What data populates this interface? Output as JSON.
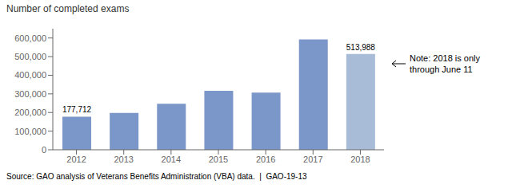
{
  "chart_data": {
    "type": "bar",
    "ylabel": "Number of completed exams",
    "categories": [
      "2012",
      "2013",
      "2014",
      "2015",
      "2016",
      "2017",
      "2018"
    ],
    "values": [
      177712,
      198000,
      247000,
      316000,
      307000,
      592000,
      513988
    ],
    "value_labels": [
      "177,712",
      null,
      null,
      null,
      null,
      null,
      "513,988"
    ],
    "colors": [
      "#7b96c8",
      "#7b96c8",
      "#7b96c8",
      "#7b96c8",
      "#7b96c8",
      "#7b96c8",
      "#a8bcd8"
    ],
    "ylim": [
      0,
      650000
    ],
    "yticks": [
      0,
      {
        "value": 100000,
        "label": "100,000"
      },
      {
        "value": 200000,
        "label": "200,000"
      },
      {
        "value": 300000,
        "label": "300,000"
      },
      {
        "value": 400000,
        "label": "400,000"
      },
      {
        "value": 500000,
        "label": "500,000"
      },
      {
        "value": 600000,
        "label": "600,000"
      }
    ],
    "grid": false,
    "annotations": [
      "Note: 2018 is only\nthrough June 11",
      "Source: GAO analysis of Veterans Benefits Administration (VBA) data.  |  GAO-19-13"
    ]
  }
}
